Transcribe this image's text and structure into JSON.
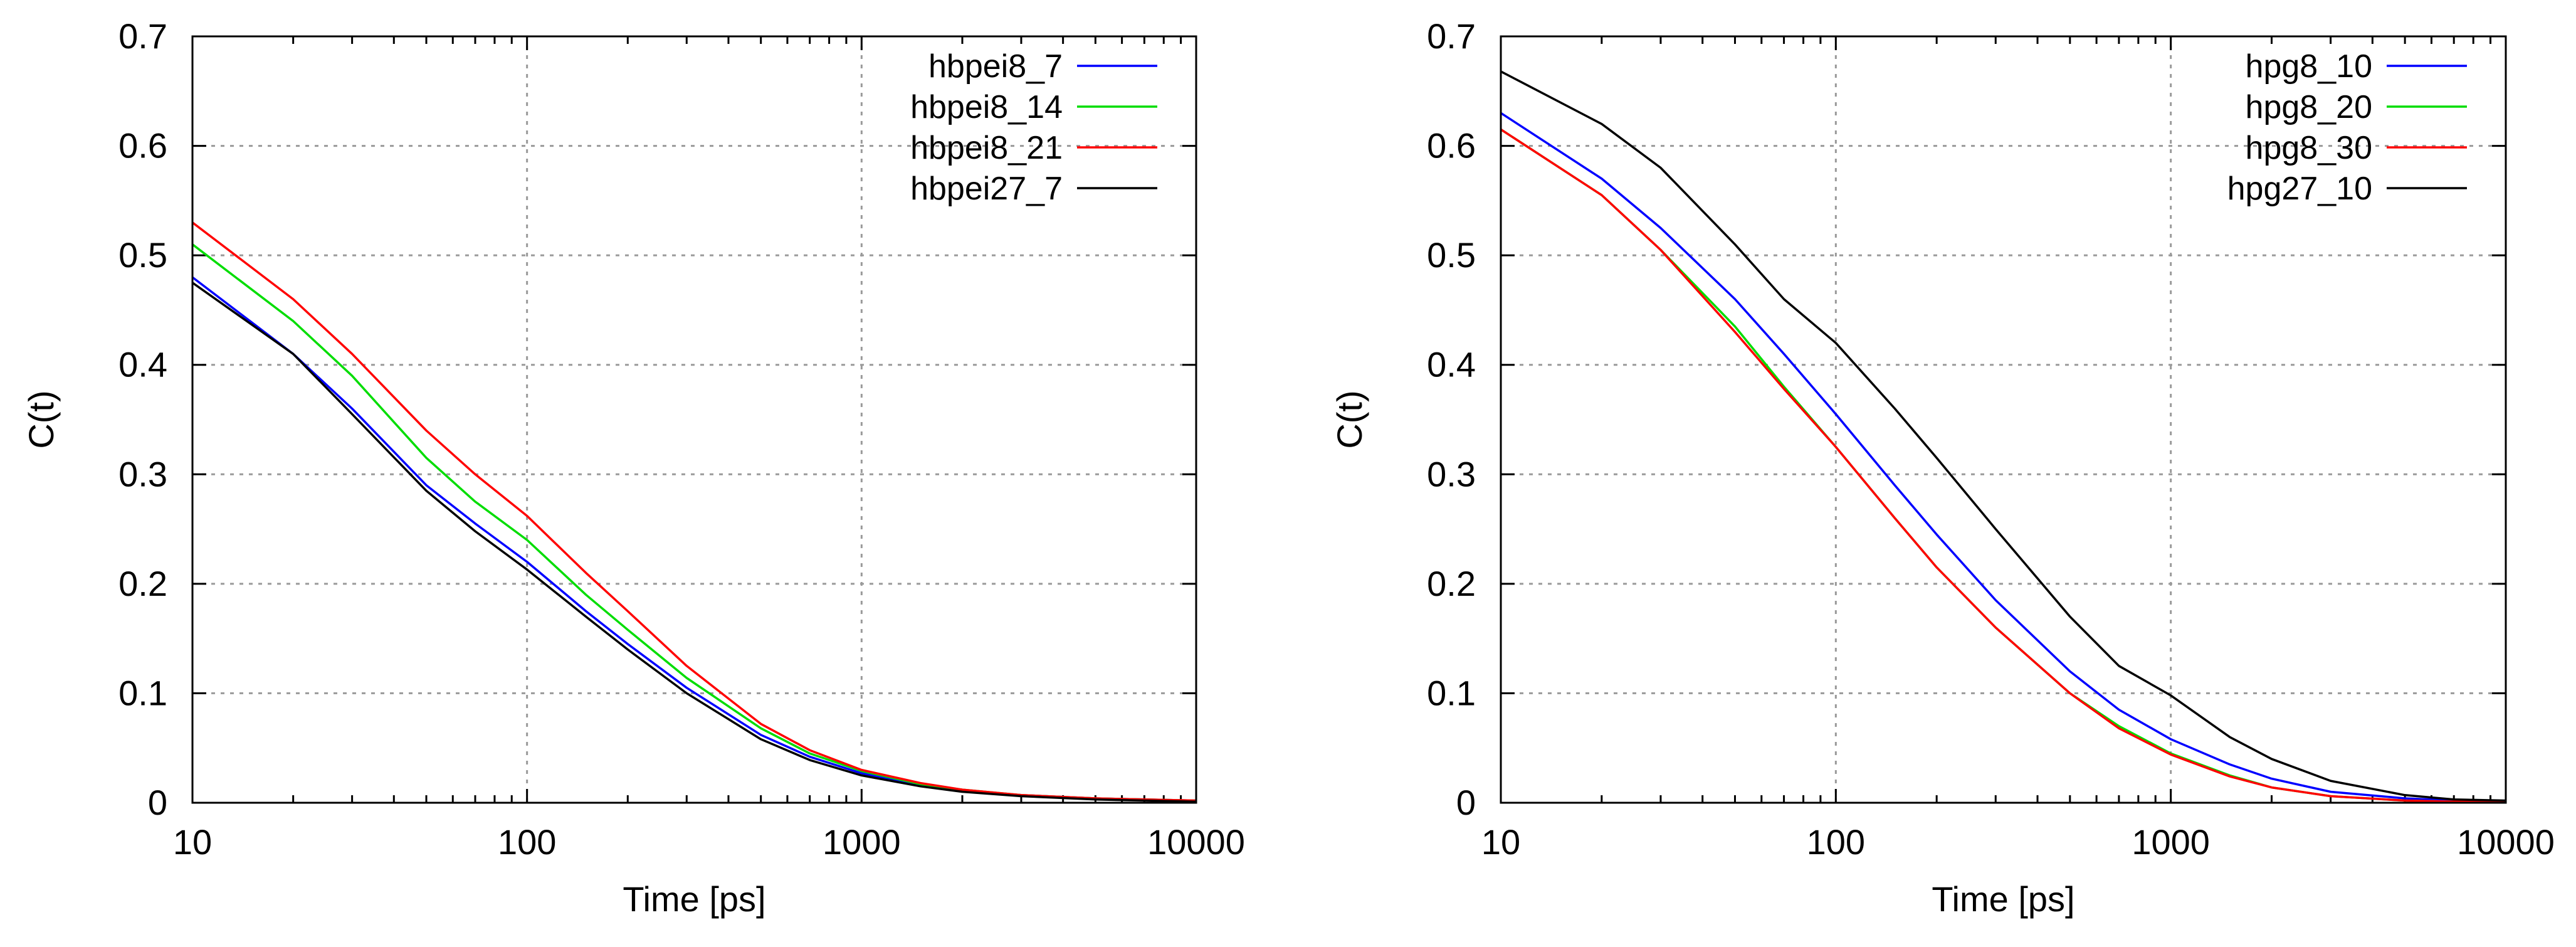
{
  "chart_data": [
    {
      "type": "line",
      "title": "",
      "xlabel": "Time [ps]",
      "ylabel": "C(t)",
      "xscale": "log",
      "xlim": [
        10,
        10000
      ],
      "ylim": [
        0,
        0.7
      ],
      "xticks": [
        10,
        100,
        1000,
        10000
      ],
      "xtick_labels": [
        "10",
        "100",
        "1000",
        "10000"
      ],
      "yticks": [
        0,
        0.1,
        0.2,
        0.3,
        0.4,
        0.5,
        0.6,
        0.7
      ],
      "ytick_labels": [
        "0",
        "0.1",
        "0.2",
        "0.3",
        "0.4",
        "0.5",
        "0.6",
        "0.7"
      ],
      "grid": true,
      "legend": "top-right",
      "series": [
        {
          "name": "hbpei8_7",
          "color": "#0000ff",
          "x": [
            10,
            20,
            30,
            50,
            70,
            100,
            150,
            200,
            300,
            500,
            700,
            1000,
            1500,
            2000,
            3000,
            5000,
            7000,
            10000
          ],
          "y": [
            0.48,
            0.41,
            0.36,
            0.29,
            0.255,
            0.22,
            0.175,
            0.145,
            0.105,
            0.062,
            0.042,
            0.027,
            0.016,
            0.011,
            0.007,
            0.004,
            0.003,
            0.002
          ]
        },
        {
          "name": "hbpei8_14",
          "color": "#00dd00",
          "x": [
            10,
            20,
            30,
            50,
            70,
            100,
            150,
            200,
            300,
            500,
            700,
            1000,
            1500,
            2000,
            3000,
            5000,
            7000,
            10000
          ],
          "y": [
            0.51,
            0.44,
            0.39,
            0.315,
            0.275,
            0.24,
            0.19,
            0.158,
            0.114,
            0.068,
            0.045,
            0.029,
            0.017,
            0.012,
            0.007,
            0.004,
            0.003,
            0.002
          ]
        },
        {
          "name": "hbpei8_21",
          "color": "#ff0000",
          "x": [
            10,
            20,
            30,
            50,
            70,
            100,
            150,
            200,
            300,
            500,
            700,
            1000,
            1500,
            2000,
            3000,
            5000,
            7000,
            10000
          ],
          "y": [
            0.53,
            0.46,
            0.41,
            0.34,
            0.3,
            0.262,
            0.21,
            0.175,
            0.125,
            0.072,
            0.048,
            0.03,
            0.018,
            0.012,
            0.007,
            0.004,
            0.003,
            0.002
          ]
        },
        {
          "name": "hbpei27_7",
          "color": "#000000",
          "x": [
            10,
            20,
            30,
            50,
            70,
            100,
            150,
            200,
            300,
            500,
            700,
            1000,
            1500,
            2000,
            3000,
            5000,
            7000,
            10000
          ],
          "y": [
            0.475,
            0.41,
            0.355,
            0.285,
            0.248,
            0.213,
            0.17,
            0.14,
            0.1,
            0.058,
            0.039,
            0.025,
            0.015,
            0.01,
            0.006,
            0.003,
            0.002,
            0.001
          ]
        }
      ]
    },
    {
      "type": "line",
      "title": "",
      "xlabel": "Time [ps]",
      "ylabel": "C(t)",
      "xscale": "log",
      "xlim": [
        10,
        10000
      ],
      "ylim": [
        0,
        0.7
      ],
      "xticks": [
        10,
        100,
        1000,
        10000
      ],
      "xtick_labels": [
        "10",
        "100",
        "1000",
        "10000"
      ],
      "yticks": [
        0,
        0.1,
        0.2,
        0.3,
        0.4,
        0.5,
        0.6,
        0.7
      ],
      "ytick_labels": [
        "0",
        "0.1",
        "0.2",
        "0.3",
        "0.4",
        "0.5",
        "0.6",
        "0.7"
      ],
      "grid": true,
      "legend": "top-right",
      "series": [
        {
          "name": "hpg8_10",
          "color": "#0000ff",
          "x": [
            10,
            20,
            30,
            50,
            70,
            100,
            150,
            200,
            300,
            500,
            700,
            1000,
            1500,
            2000,
            3000,
            5000,
            7000,
            10000
          ],
          "y": [
            0.63,
            0.57,
            0.525,
            0.46,
            0.41,
            0.355,
            0.29,
            0.245,
            0.185,
            0.12,
            0.085,
            0.058,
            0.035,
            0.022,
            0.01,
            0.004,
            0.002,
            0.001
          ]
        },
        {
          "name": "hpg8_20",
          "color": "#00dd00",
          "x": [
            10,
            20,
            30,
            50,
            70,
            100,
            150,
            200,
            300,
            500,
            700,
            1000,
            1500,
            2000,
            3000,
            5000,
            7000,
            10000
          ],
          "y": [
            0.615,
            0.555,
            0.505,
            0.435,
            0.38,
            0.325,
            0.26,
            0.215,
            0.16,
            0.1,
            0.07,
            0.045,
            0.025,
            0.014,
            0.006,
            0.002,
            0.001,
            0.001
          ]
        },
        {
          "name": "hpg8_30",
          "color": "#ff0000",
          "x": [
            10,
            20,
            30,
            50,
            70,
            100,
            150,
            200,
            300,
            500,
            700,
            1000,
            1500,
            2000,
            3000,
            5000,
            7000,
            10000
          ],
          "y": [
            0.615,
            0.555,
            0.505,
            0.43,
            0.378,
            0.325,
            0.26,
            0.215,
            0.16,
            0.1,
            0.068,
            0.044,
            0.024,
            0.014,
            0.006,
            0.002,
            0.001,
            0.001
          ]
        },
        {
          "name": "hpg27_10",
          "color": "#000000",
          "x": [
            10,
            20,
            30,
            50,
            70,
            100,
            150,
            200,
            300,
            500,
            700,
            1000,
            1500,
            2000,
            3000,
            5000,
            7000,
            10000
          ],
          "y": [
            0.668,
            0.62,
            0.58,
            0.51,
            0.46,
            0.42,
            0.36,
            0.315,
            0.25,
            0.17,
            0.125,
            0.098,
            0.06,
            0.04,
            0.02,
            0.007,
            0.003,
            0.002
          ]
        }
      ]
    }
  ]
}
